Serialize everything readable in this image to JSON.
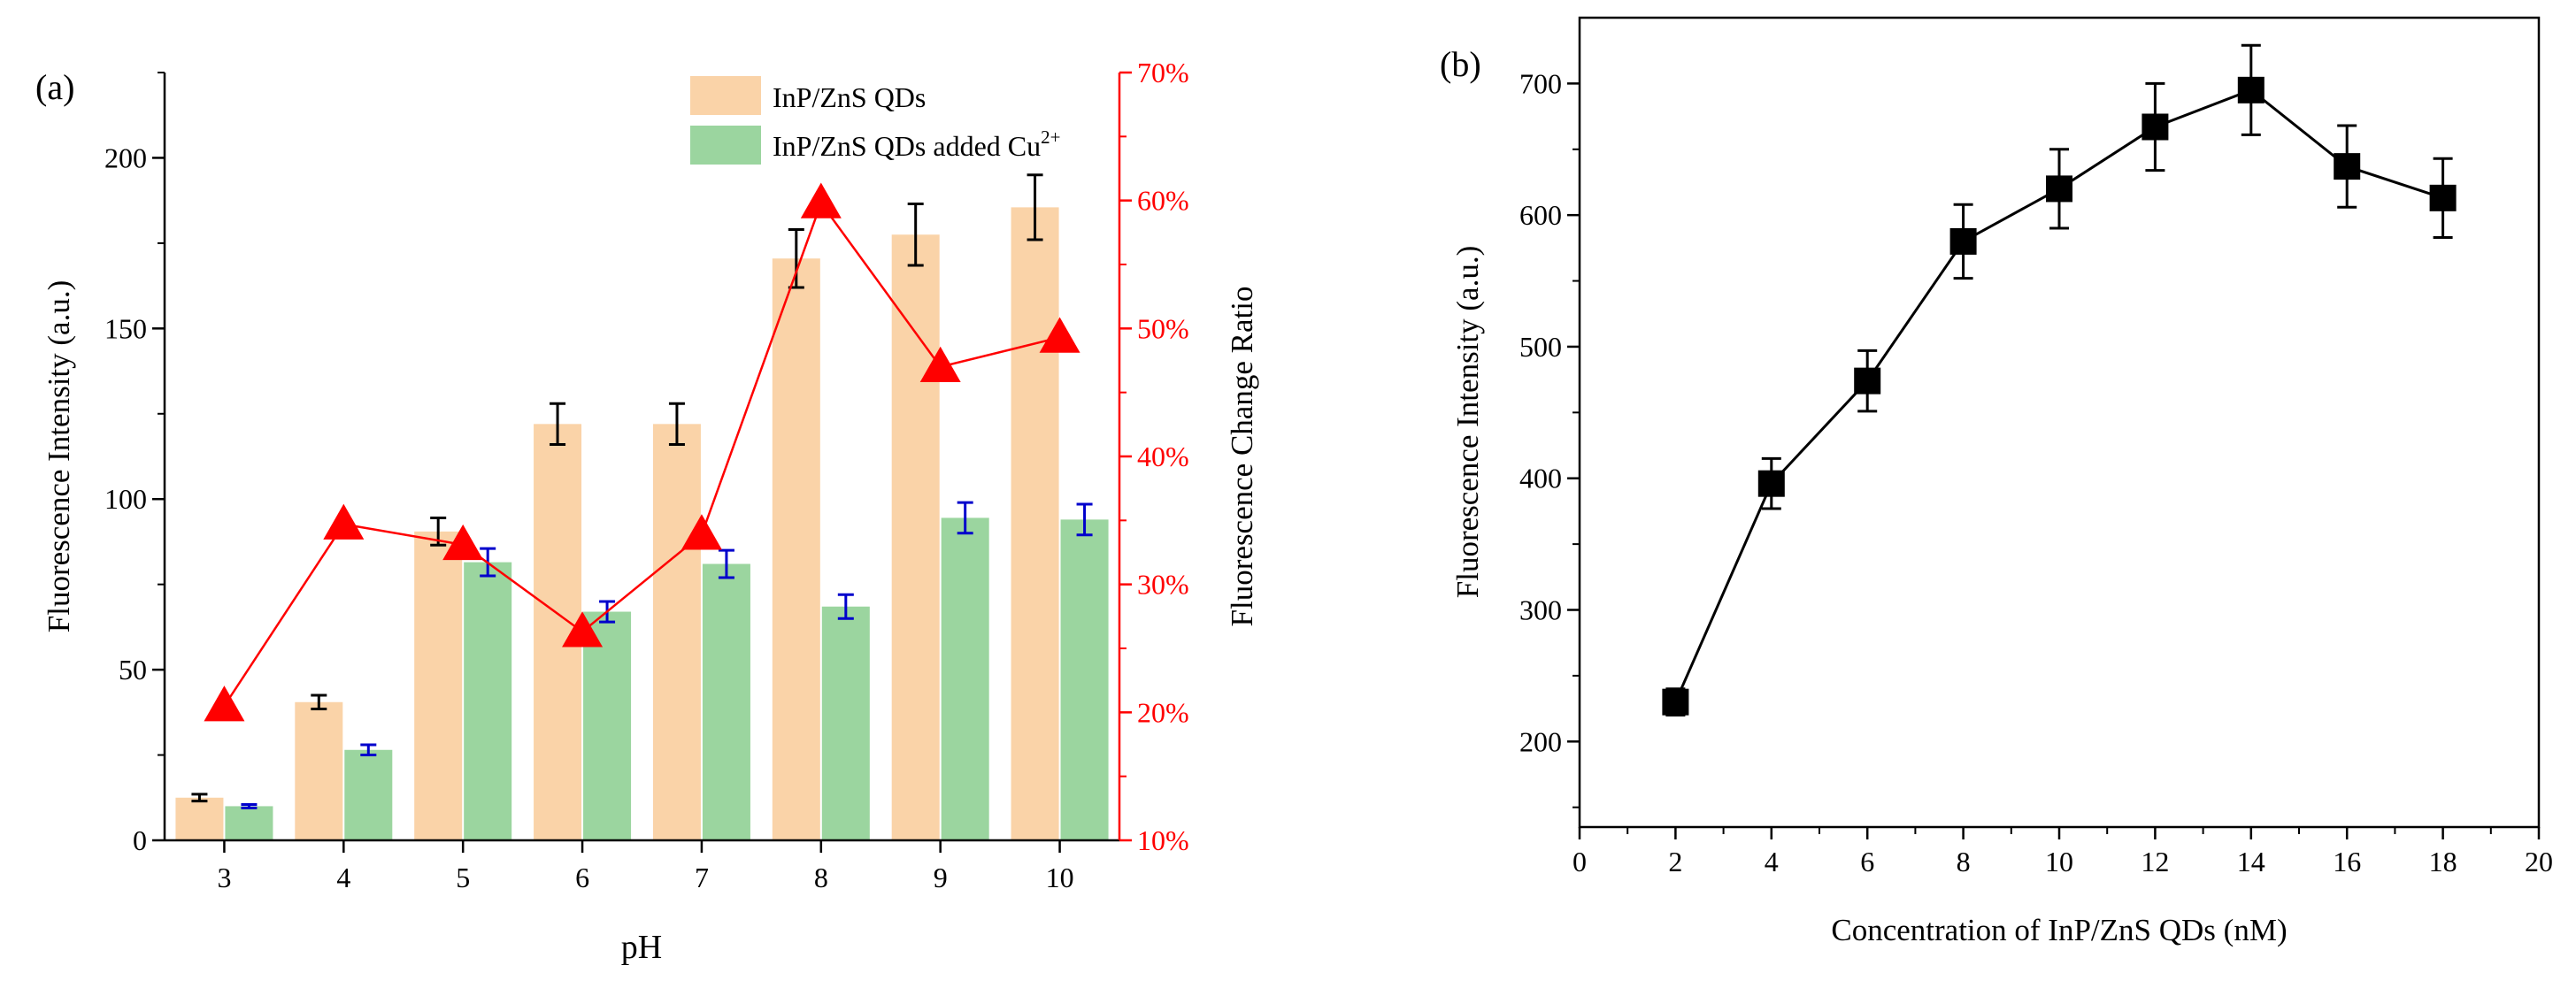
{
  "colors": {
    "bar1": "#FAD3A8",
    "bar2": "#9BD59F",
    "ratio": "#FF0000",
    "err1": "#000000",
    "err2": "#0000CC",
    "axis": "#000000",
    "markerB": "#000000"
  },
  "chart_data": [
    {
      "type": "bar",
      "panel_label": "(a)",
      "title": "",
      "xlabel": "pH",
      "ylabel": "Fluorescence Intensity (a.u.)",
      "y2label": "Fluorescence Change Ratio",
      "categories": [
        "3",
        "4",
        "5",
        "6",
        "7",
        "8",
        "9",
        "10"
      ],
      "ylim": [
        0,
        225
      ],
      "yticks": [
        0,
        50,
        100,
        150,
        200
      ],
      "y2lim": [
        10,
        70
      ],
      "y2ticks": [
        "10%",
        "20%",
        "30%",
        "40%",
        "50%",
        "60%",
        "70%"
      ],
      "y2tick_values": [
        10,
        20,
        30,
        40,
        50,
        60,
        70
      ],
      "series": [
        {
          "name": "InP/ZnS QDs",
          "kind": "bar",
          "values": [
            12.5,
            40.5,
            90.5,
            122,
            122,
            170.5,
            177.5,
            185.5
          ],
          "errors": [
            1,
            2,
            4,
            6,
            6,
            8.5,
            9,
            9.5
          ]
        },
        {
          "name": "InP/ZnS QDs added Cu",
          "name_sup": "2+",
          "kind": "bar",
          "values": [
            10,
            26.5,
            81.5,
            67,
            81,
            68.5,
            94.5,
            94
          ],
          "errors": [
            0.5,
            1.5,
            4,
            3,
            4,
            3.5,
            4.5,
            4.5
          ]
        },
        {
          "name": "Fluorescence Change Ratio",
          "kind": "line",
          "axis": "right",
          "values": [
            20.5,
            34.7,
            33.1,
            26.3,
            33.9,
            59.8,
            47,
            49.3
          ]
        }
      ],
      "legend": "top-right"
    },
    {
      "type": "line",
      "panel_label": "(b)",
      "title": "",
      "xlabel": "Concentration of InP/ZnS QDs  (nM)",
      "ylabel": "Fluorescence Intensity (a.u.)",
      "x": [
        2,
        4,
        6,
        8,
        10,
        12,
        14,
        16,
        18
      ],
      "values": [
        230,
        396,
        474,
        580,
        620,
        667,
        695,
        637,
        613
      ],
      "errors": [
        10,
        19,
        23,
        28,
        30,
        33,
        34,
        31,
        30
      ],
      "xlim": [
        0,
        20
      ],
      "xticks": [
        0,
        2,
        4,
        6,
        8,
        10,
        12,
        14,
        16,
        18,
        20
      ],
      "ylim": [
        135,
        750
      ],
      "yticks": [
        200,
        300,
        400,
        500,
        600,
        700
      ],
      "grid": false
    }
  ]
}
